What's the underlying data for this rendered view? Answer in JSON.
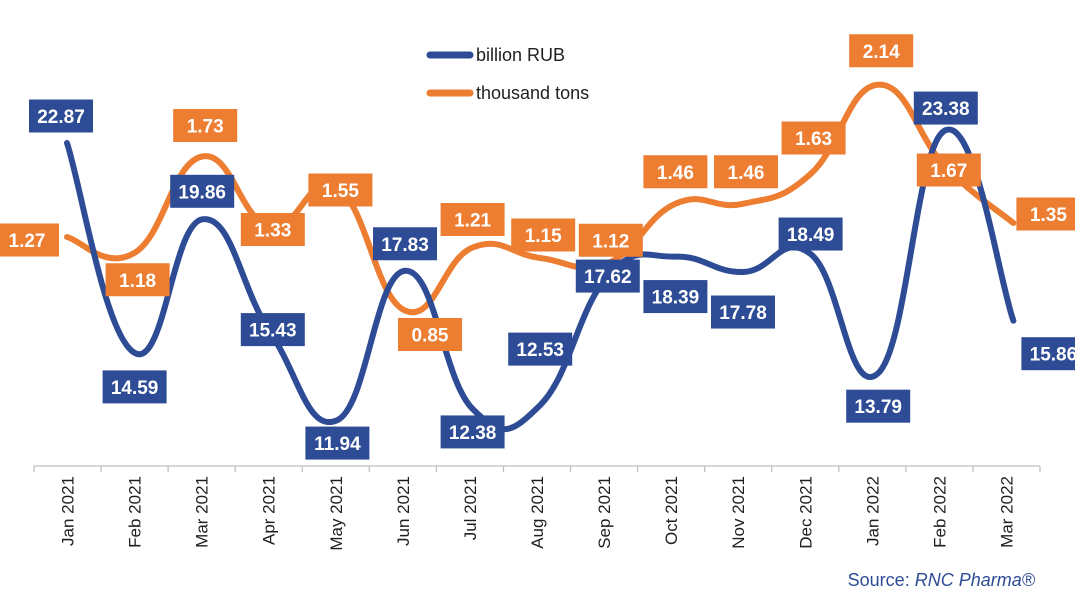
{
  "chart_data": {
    "type": "line",
    "categories": [
      "Jan 2021",
      "Feb 2021",
      "Mar 2021",
      "Apr 2021",
      "May 2021",
      "Jun 2021",
      "Jul 2021",
      "Aug 2021",
      "Sep 2021",
      "Oct 2021",
      "Nov 2021",
      "Dec 2021",
      "Jan 2022",
      "Feb 2022",
      "Mar 2022"
    ],
    "series": [
      {
        "name": "billion RUB",
        "color": "#2E4C96",
        "values": [
          22.87,
          14.59,
          19.86,
          15.43,
          11.94,
          17.83,
          12.38,
          12.53,
          17.62,
          18.39,
          17.78,
          18.49,
          13.79,
          23.38,
          15.86
        ],
        "labels": [
          "22.87",
          "14.59",
          "19.86",
          "15.43",
          "11.94",
          "17.83",
          "12.38",
          "12.53",
          "17.62",
          "18.39",
          "17.78",
          "18.49",
          "13.79",
          "23.38",
          "15.86"
        ]
      },
      {
        "name": "thousand tons",
        "color": "#ED7D31",
        "values": [
          1.27,
          1.18,
          1.73,
          1.33,
          1.55,
          0.85,
          1.21,
          1.15,
          1.12,
          1.46,
          1.46,
          1.63,
          2.14,
          1.67,
          1.35
        ],
        "labels": [
          "1.27",
          "1.18",
          "1.73",
          "1.33",
          "1.55",
          "0.85",
          "1.21",
          "1.15",
          "1.12",
          "1.46",
          "1.46",
          "1.63",
          "2.14",
          "1.67",
          "1.35"
        ]
      }
    ],
    "legend_position": "top-center",
    "grid": false,
    "smooth": true
  },
  "source": {
    "prefix": "Source: ",
    "name": "RNC Pharma®"
  }
}
